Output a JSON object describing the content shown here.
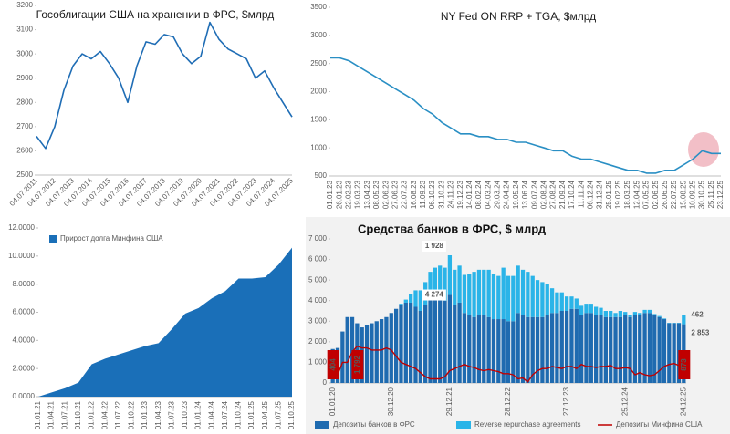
{
  "chart_data": [
    {
      "type": "line",
      "title": "Гособлигации США на хранении в ФРС, $млрд",
      "categories": [
        "04.07.2011",
        null,
        "04.07.2012",
        null,
        "04.07.2013",
        null,
        "04.07.2014",
        null,
        "04.07.2015",
        null,
        "04.07.2016",
        null,
        "04.07.2017",
        null,
        "04.07.2018",
        null,
        "04.07.2019",
        null,
        "04.07.2020",
        null,
        "04.07.2021",
        null,
        "04.07.2022",
        null,
        "04.07.2023",
        null,
        "04.07.2024",
        null,
        "04.07.2025"
      ],
      "series": [
        {
          "color": "#1f6db5",
          "values": [
            2660,
            2610,
            2700,
            2850,
            2950,
            3000,
            2980,
            3010,
            2960,
            2900,
            2800,
            2950,
            3050,
            3040,
            3080,
            3070,
            3000,
            2960,
            2990,
            3130,
            3060,
            3020,
            3000,
            2980,
            2900,
            2930,
            2860,
            2800,
            2740
          ]
        }
      ],
      "ylim": [
        2500,
        3200
      ],
      "yticks": [
        2500,
        2600,
        2700,
        2800,
        2900,
        3000,
        3100,
        3200
      ]
    },
    {
      "type": "line",
      "title": "NY Fed ON RRP + TGA, $млрд",
      "categories": [
        "01.01.23",
        "26.01.23",
        "22.02.23",
        "19.03.23",
        "13.04.23",
        "08.05.23",
        "02.06.23",
        "27.06.23",
        "22.07.23",
        "16.08.23",
        "11.09.23",
        "06.10.23",
        "31.10.23",
        "24.11.23",
        "19.12.23",
        "14.01.24",
        "08.02.24",
        "04.03.24",
        "29.03.24",
        "24.04.24",
        "19.05.24",
        "13.06.24",
        "09.07.24",
        "02.08.24",
        "27.08.24",
        "21.09.24",
        "17.10.24",
        "11.11.24",
        "06.12.24",
        "31.12.24",
        "25.01.25",
        "19.02.25",
        "18.03.25",
        "12.04.25",
        "07.05.25",
        "02.06.25",
        "26.06.25",
        "22.07.25",
        "15.08.25",
        "10.09.25",
        "30.10.25",
        "25.11.25",
        "23.12.25"
      ],
      "series": [
        {
          "color": "#2a8fc4",
          "values": [
            2600,
            2600,
            2550,
            2450,
            2350,
            2250,
            2150,
            2050,
            1950,
            1850,
            1700,
            1600,
            1450,
            1350,
            1250,
            1250,
            1200,
            1200,
            1150,
            1150,
            1100,
            1100,
            1050,
            1000,
            950,
            950,
            850,
            800,
            800,
            750,
            700,
            650,
            600,
            600,
            550,
            550,
            600,
            600,
            700,
            800,
            950,
            900,
            900
          ]
        }
      ],
      "ylim": [
        500,
        3500
      ],
      "yticks": [
        500,
        1000,
        1500,
        2000,
        2500,
        3000,
        3500
      ]
    },
    {
      "type": "area",
      "categories": [
        "01.01.21",
        "01.04.21",
        "01.07.21",
        "01.10.21",
        "01.01.22",
        "01.04.22",
        "01.07.22",
        "01.10.22",
        "01.01.23",
        "01.04.23",
        "01.07.23",
        "01.10.23",
        "01.01.24",
        "01.04.24",
        "01.07.24",
        "01.10.24",
        "01.01.25",
        "01.04.25",
        "01.07.25",
        "01.10.25"
      ],
      "series": [
        {
          "name": "Прирост долга Минфина США",
          "color": "#1a6fb8",
          "values": [
            0,
            300,
            600,
            1000,
            2300,
            2700,
            3000,
            3300,
            3600,
            3800,
            4800,
            5900,
            6300,
            7000,
            7500,
            8400,
            8400,
            8500,
            9400,
            10600
          ]
        }
      ],
      "ylim": [
        0,
        12000
      ],
      "yticks": [
        {
          "value": 0,
          "label": "0.0000"
        },
        {
          "value": 2000,
          "label": "2.0000"
        },
        {
          "value": 4000,
          "label": "4.0000"
        },
        {
          "value": 6000,
          "label": "6.0000"
        },
        {
          "value": 8000,
          "label": "8.0000"
        },
        {
          "value": 10000,
          "label": "10.0000"
        },
        {
          "value": 12000,
          "label": "12.0000"
        }
      ]
    },
    {
      "type": "bar",
      "title": "Средства банков в ФРС, $ млрд",
      "categories": [
        "01.01.20",
        null,
        null,
        null,
        null,
        null,
        null,
        null,
        null,
        null,
        null,
        null,
        "30.12.20",
        null,
        null,
        null,
        null,
        null,
        null,
        null,
        null,
        null,
        null,
        null,
        "29.12.21",
        null,
        null,
        null,
        null,
        null,
        null,
        null,
        null,
        null,
        null,
        null,
        "28.12.22",
        null,
        null,
        null,
        null,
        null,
        null,
        null,
        null,
        null,
        null,
        null,
        "27.12.23",
        null,
        null,
        null,
        null,
        null,
        null,
        null,
        null,
        null,
        null,
        null,
        "25.12.24",
        null,
        null,
        null,
        null,
        null,
        null,
        null,
        null,
        null,
        null,
        null,
        "24.12.25"
      ],
      "series": [
        {
          "name": "Депозиты банков в ФРС",
          "color": "#1f6bb0",
          "values": [
            1650,
            1700,
            2500,
            3200,
            3200,
            2900,
            2700,
            2800,
            2900,
            3000,
            3100,
            3200,
            3400,
            3600,
            3800,
            3900,
            3900,
            3700,
            3500,
            3800,
            4100,
            4200,
            4200,
            4000,
            4274,
            3800,
            3900,
            3400,
            3300,
            3200,
            3300,
            3300,
            3200,
            3100,
            3100,
            3100,
            3000,
            3000,
            3400,
            3300,
            3200,
            3200,
            3200,
            3200,
            3300,
            3400,
            3400,
            3500,
            3500,
            3600,
            3600,
            3300,
            3400,
            3400,
            3300,
            3300,
            3200,
            3200,
            3200,
            3200,
            3300,
            3200,
            3300,
            3300,
            3400,
            3400,
            3300,
            3200,
            3100,
            2900,
            2900,
            2900,
            2853
          ],
          "value_labels": [
            null,
            null,
            null,
            null,
            null,
            null,
            null,
            null,
            null,
            null,
            null,
            null,
            null,
            null,
            null,
            null,
            null,
            null,
            null,
            null,
            null,
            null,
            null,
            null,
            "4 274",
            null,
            null,
            null,
            null,
            null,
            null,
            null,
            null,
            null,
            null,
            null,
            null,
            null,
            null,
            null,
            null,
            null,
            null,
            null,
            null,
            null,
            null,
            null,
            null,
            null,
            null,
            null,
            null,
            null,
            null,
            null,
            null,
            null,
            null,
            null,
            null,
            null,
            null,
            null,
            null,
            null,
            null,
            null,
            null,
            null,
            null,
            null,
            "2 853"
          ]
        },
        {
          "name": "Reverse repurchase agreements",
          "color": "#2ab4e8",
          "values": [
            0,
            0,
            0,
            0,
            0,
            0,
            0,
            0,
            0,
            0,
            0,
            0,
            0,
            0,
            50,
            150,
            400,
            800,
            1000,
            1100,
            1300,
            1400,
            1500,
            1600,
            1928,
            1700,
            1800,
            1850,
            2000,
            2200,
            2200,
            2200,
            2300,
            2200,
            2100,
            2500,
            2200,
            2200,
            2300,
            2200,
            2200,
            2000,
            1800,
            1700,
            1500,
            1200,
            1000,
            900,
            700,
            600,
            500,
            450,
            450,
            450,
            400,
            350,
            300,
            300,
            200,
            300,
            150,
            100,
            150,
            100,
            150,
            150,
            50,
            50,
            30,
            20,
            20,
            20,
            462
          ],
          "value_labels": [
            null,
            null,
            null,
            null,
            null,
            null,
            null,
            null,
            null,
            null,
            null,
            null,
            null,
            null,
            null,
            null,
            null,
            null,
            null,
            null,
            null,
            null,
            null,
            null,
            "1 928",
            null,
            null,
            null,
            null,
            null,
            null,
            null,
            null,
            null,
            null,
            null,
            null,
            null,
            null,
            null,
            null,
            null,
            null,
            null,
            null,
            null,
            null,
            null,
            null,
            null,
            null,
            null,
            null,
            null,
            null,
            null,
            null,
            null,
            null,
            null,
            null,
            null,
            null,
            null,
            null,
            null,
            null,
            null,
            null,
            null,
            null,
            null,
            "462"
          ]
        },
        {
          "name": "Депозиты Минфина США",
          "type": "line",
          "color": "#c00000",
          "values": [
            404,
            400,
            1000,
            1000,
            1500,
            1792,
            1700,
            1700,
            1600,
            1600,
            1600,
            1700,
            1600,
            1300,
            1000,
            900,
            800,
            700,
            500,
            300,
            200,
            200,
            200,
            300,
            600,
            700,
            800,
            900,
            800,
            750,
            650,
            600,
            650,
            600,
            550,
            450,
            450,
            400,
            200,
            250,
            50,
            400,
            600,
            700,
            700,
            800,
            750,
            700,
            800,
            800,
            700,
            900,
            800,
            800,
            750,
            800,
            800,
            850,
            700,
            700,
            750,
            700,
            400,
            500,
            400,
            350,
            400,
            600,
            800,
            900,
            950,
            850,
            873
          ],
          "value_labels": [
            "404",
            null,
            null,
            null,
            null,
            "1 792",
            null,
            null,
            null,
            null,
            null,
            null,
            null,
            null,
            null,
            null,
            null,
            null,
            null,
            null,
            null,
            null,
            null,
            null,
            null,
            null,
            null,
            null,
            null,
            null,
            null,
            null,
            null,
            null,
            null,
            null,
            null,
            null,
            null,
            null,
            null,
            null,
            null,
            null,
            null,
            null,
            null,
            null,
            null,
            null,
            null,
            null,
            null,
            null,
            null,
            null,
            null,
            null,
            null,
            null,
            null,
            null,
            null,
            null,
            null,
            null,
            null,
            null,
            null,
            null,
            null,
            null,
            "873"
          ]
        }
      ],
      "ylim": [
        0,
        7000
      ],
      "yticks": [
        0,
        {
          "value": 1000,
          "label": "1 000"
        },
        {
          "value": 2000,
          "label": "2 000"
        },
        {
          "value": 3000,
          "label": "3 000"
        },
        {
          "value": 4000,
          "label": "4 000"
        },
        {
          "value": 5000,
          "label": "5 000"
        },
        {
          "value": 6000,
          "label": "6 000"
        },
        {
          "value": 7000,
          "label": "7 000"
        }
      ]
    }
  ]
}
